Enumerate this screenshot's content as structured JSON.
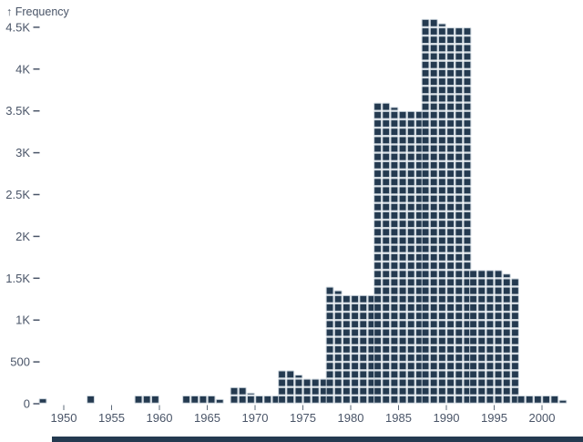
{
  "colors": {
    "background": "#FFFFFF",
    "cell_fill": "#243A50",
    "cell_stroke": "#C7D1D9",
    "axis_text": "#4A5568",
    "tick_mark": "#5E6B7A",
    "partial_element": "#243A50"
  },
  "chart_data": {
    "type": "bar",
    "style": "waffle",
    "title": "",
    "xlabel": "",
    "ylabel": "↑ Frequency",
    "legend": "none",
    "grid": false,
    "ylim": [
      0,
      4750
    ],
    "units_per_row": 100,
    "columns_per_bar": 6,
    "x": [
      1950,
      1955,
      1960,
      1965,
      1970,
      1975,
      1980,
      1985,
      1990,
      1995,
      2000
    ],
    "values": [
      10,
      17,
      50,
      75,
      135,
      340,
      1325,
      3540,
      4540,
      1575,
      90
    ],
    "x_tick_labels": [
      "1950",
      "1955",
      "1960",
      "1965",
      "1970",
      "1975",
      "1980",
      "1985",
      "1990",
      "1995",
      "2000"
    ],
    "y_ticks": [
      {
        "value": 0,
        "label": "0"
      },
      {
        "value": 500,
        "label": "500"
      },
      {
        "value": 1000,
        "label": "1K"
      },
      {
        "value": 1500,
        "label": "1.5K"
      },
      {
        "value": 2000,
        "label": "2K"
      },
      {
        "value": 2500,
        "label": "2.5K"
      },
      {
        "value": 3000,
        "label": "3K"
      },
      {
        "value": 3500,
        "label": "3.5K"
      },
      {
        "value": 4000,
        "label": "4K"
      },
      {
        "value": 4500,
        "label": "4.5K"
      }
    ]
  }
}
